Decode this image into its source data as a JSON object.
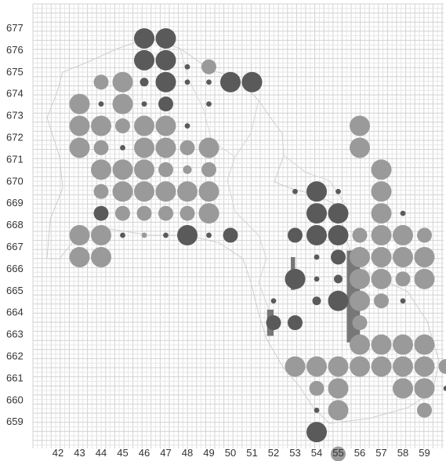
{
  "map": {
    "x_labels": [
      "42",
      "43",
      "44",
      "45",
      "46",
      "47",
      "48",
      "49",
      "50",
      "51",
      "52",
      "53",
      "54",
      "55",
      "56",
      "57",
      "58",
      "59"
    ],
    "y_labels": [
      "677",
      "676",
      "675",
      "674",
      "673",
      "672",
      "671",
      "670",
      "669",
      "668",
      "667",
      "666",
      "665",
      "664",
      "663",
      "662",
      "661",
      "660",
      "659"
    ],
    "colors": {
      "grid_minor": "#e6e6e6",
      "grid_major": "#d2d2d2",
      "outline": "#c8c8c8",
      "light_dot": "#9a9a9a",
      "dark_dot": "#5a5a5a",
      "sparkle": "#ffffff",
      "rect": "#777777"
    },
    "dots": [
      {
        "x": 46,
        "y": 676.5,
        "size": "large",
        "tone": "dark"
      },
      {
        "x": 47,
        "y": 676.5,
        "size": "large",
        "tone": "dark"
      },
      {
        "x": 46,
        "y": 675.5,
        "size": "large",
        "tone": "dark"
      },
      {
        "x": 47,
        "y": 675.5,
        "size": "large",
        "tone": "dark"
      },
      {
        "x": 46.5,
        "y": 676,
        "size": "tiny",
        "tone": "sparkle"
      },
      {
        "x": 48,
        "y": 675.2,
        "size": "tiny",
        "tone": "dark"
      },
      {
        "x": 49,
        "y": 675.2,
        "size": "medium",
        "tone": "light"
      },
      {
        "x": 44,
        "y": 674.5,
        "size": "medium",
        "tone": "light"
      },
      {
        "x": 45,
        "y": 674.5,
        "size": "large",
        "tone": "light"
      },
      {
        "x": 46,
        "y": 674.5,
        "size": "small",
        "tone": "dark"
      },
      {
        "x": 47,
        "y": 674.5,
        "size": "large",
        "tone": "dark"
      },
      {
        "x": 48,
        "y": 674.5,
        "size": "tiny",
        "tone": "dark"
      },
      {
        "x": 49,
        "y": 674.5,
        "size": "tiny",
        "tone": "dark"
      },
      {
        "x": 50,
        "y": 674.5,
        "size": "large",
        "tone": "dark"
      },
      {
        "x": 51,
        "y": 674.5,
        "size": "large",
        "tone": "dark"
      },
      {
        "x": 43,
        "y": 673.5,
        "size": "large",
        "tone": "light"
      },
      {
        "x": 44,
        "y": 673.5,
        "size": "tiny",
        "tone": "dark"
      },
      {
        "x": 45,
        "y": 673.5,
        "size": "large",
        "tone": "light"
      },
      {
        "x": 46,
        "y": 673.5,
        "size": "tiny",
        "tone": "dark"
      },
      {
        "x": 47,
        "y": 673.5,
        "size": "medium",
        "tone": "dark"
      },
      {
        "x": 49,
        "y": 673.5,
        "size": "tiny",
        "tone": "dark"
      },
      {
        "x": 43,
        "y": 672.5,
        "size": "large",
        "tone": "light"
      },
      {
        "x": 44,
        "y": 672.5,
        "size": "large",
        "tone": "light"
      },
      {
        "x": 45,
        "y": 672.5,
        "size": "medium",
        "tone": "light"
      },
      {
        "x": 46,
        "y": 672.5,
        "size": "large",
        "tone": "light"
      },
      {
        "x": 47,
        "y": 672.5,
        "size": "large",
        "tone": "light"
      },
      {
        "x": 48,
        "y": 672.5,
        "size": "tiny",
        "tone": "dark"
      },
      {
        "x": 43,
        "y": 671.5,
        "size": "large",
        "tone": "light"
      },
      {
        "x": 44,
        "y": 671.5,
        "size": "medium",
        "tone": "light"
      },
      {
        "x": 45,
        "y": 671.5,
        "size": "tiny",
        "tone": "dark"
      },
      {
        "x": 46,
        "y": 671.5,
        "size": "large",
        "tone": "light"
      },
      {
        "x": 47,
        "y": 671.5,
        "size": "large",
        "tone": "light"
      },
      {
        "x": 48,
        "y": 671.5,
        "size": "medium",
        "tone": "light"
      },
      {
        "x": 49,
        "y": 671.5,
        "size": "large",
        "tone": "light"
      },
      {
        "x": 46.5,
        "y": 672,
        "size": "tiny",
        "tone": "sparkle"
      },
      {
        "x": 44,
        "y": 670.5,
        "size": "large",
        "tone": "light"
      },
      {
        "x": 45,
        "y": 670.5,
        "size": "large",
        "tone": "light"
      },
      {
        "x": 46,
        "y": 670.5,
        "size": "large",
        "tone": "light"
      },
      {
        "x": 47,
        "y": 670.5,
        "size": "medium",
        "tone": "light"
      },
      {
        "x": 48,
        "y": 670.5,
        "size": "small",
        "tone": "light"
      },
      {
        "x": 49,
        "y": 670.5,
        "size": "medium",
        "tone": "light"
      },
      {
        "x": 44,
        "y": 669.5,
        "size": "medium",
        "tone": "light"
      },
      {
        "x": 45,
        "y": 669.5,
        "size": "large",
        "tone": "light"
      },
      {
        "x": 46,
        "y": 669.5,
        "size": "large",
        "tone": "light"
      },
      {
        "x": 47,
        "y": 669.5,
        "size": "large",
        "tone": "light"
      },
      {
        "x": 48,
        "y": 669.5,
        "size": "large",
        "tone": "light"
      },
      {
        "x": 49,
        "y": 669.5,
        "size": "large",
        "tone": "light"
      },
      {
        "x": 44,
        "y": 668.5,
        "size": "medium",
        "tone": "dark"
      },
      {
        "x": 45,
        "y": 668.5,
        "size": "medium",
        "tone": "light"
      },
      {
        "x": 46,
        "y": 668.5,
        "size": "medium",
        "tone": "light"
      },
      {
        "x": 47,
        "y": 668.5,
        "size": "medium",
        "tone": "light"
      },
      {
        "x": 48,
        "y": 668.5,
        "size": "medium",
        "tone": "light"
      },
      {
        "x": 49,
        "y": 668.5,
        "size": "large",
        "tone": "light"
      },
      {
        "x": 43,
        "y": 667.5,
        "size": "large",
        "tone": "light"
      },
      {
        "x": 44,
        "y": 667.5,
        "size": "large",
        "tone": "light"
      },
      {
        "x": 45,
        "y": 667.5,
        "size": "tiny",
        "tone": "dark"
      },
      {
        "x": 46,
        "y": 667.5,
        "size": "tiny",
        "tone": "light"
      },
      {
        "x": 47,
        "y": 667.5,
        "size": "tiny",
        "tone": "dark"
      },
      {
        "x": 48,
        "y": 667.5,
        "size": "large",
        "tone": "dark"
      },
      {
        "x": 49,
        "y": 667.5,
        "size": "tiny",
        "tone": "dark"
      },
      {
        "x": 50,
        "y": 667.5,
        "size": "medium",
        "tone": "dark"
      },
      {
        "x": 43,
        "y": 666.5,
        "size": "large",
        "tone": "light"
      },
      {
        "x": 44,
        "y": 666.5,
        "size": "large",
        "tone": "light"
      },
      {
        "x": 43.5,
        "y": 667,
        "size": "tiny",
        "tone": "sparkle"
      },
      {
        "x": 54,
        "y": 669.5,
        "size": "large",
        "tone": "dark"
      },
      {
        "x": 53,
        "y": 669.5,
        "size": "tiny",
        "tone": "dark"
      },
      {
        "x": 55,
        "y": 669.5,
        "size": "tiny",
        "tone": "dark"
      },
      {
        "x": 54,
        "y": 668.5,
        "size": "large",
        "tone": "dark"
      },
      {
        "x": 55,
        "y": 668.5,
        "size": "large",
        "tone": "dark"
      },
      {
        "x": 53,
        "y": 667.5,
        "size": "medium",
        "tone": "dark"
      },
      {
        "x": 54,
        "y": 667.5,
        "size": "large",
        "tone": "dark"
      },
      {
        "x": 55,
        "y": 667.5,
        "size": "large",
        "tone": "dark"
      },
      {
        "x": 56,
        "y": 667.5,
        "size": "tiny",
        "tone": "dark"
      },
      {
        "x": 54.5,
        "y": 668,
        "size": "tiny",
        "tone": "sparkle"
      },
      {
        "x": 54,
        "y": 666.5,
        "size": "tiny",
        "tone": "dark"
      },
      {
        "x": 55,
        "y": 666.5,
        "size": "medium",
        "tone": "dark"
      },
      {
        "x": 53,
        "y": 665.5,
        "size": "large",
        "tone": "dark"
      },
      {
        "x": 54,
        "y": 665.5,
        "size": "tiny",
        "tone": "dark"
      },
      {
        "x": 55,
        "y": 665.5,
        "size": "small",
        "tone": "dark"
      },
      {
        "x": 55,
        "y": 664.5,
        "size": "large",
        "tone": "dark"
      },
      {
        "x": 54,
        "y": 664.5,
        "size": "small",
        "tone": "dark"
      },
      {
        "x": 52,
        "y": 664.5,
        "size": "tiny",
        "tone": "dark"
      },
      {
        "x": 52,
        "y": 663.5,
        "size": "medium",
        "tone": "dark"
      },
      {
        "x": 53,
        "y": 663.5,
        "size": "medium",
        "tone": "dark"
      },
      {
        "x": 56,
        "y": 672.5,
        "size": "large",
        "tone": "light"
      },
      {
        "x": 56,
        "y": 671.5,
        "size": "large",
        "tone": "light"
      },
      {
        "x": 57,
        "y": 670.5,
        "size": "large",
        "tone": "light"
      },
      {
        "x": 57,
        "y": 669.5,
        "size": "large",
        "tone": "light"
      },
      {
        "x": 57,
        "y": 668.5,
        "size": "large",
        "tone": "light"
      },
      {
        "x": 58,
        "y": 668.5,
        "size": "tiny",
        "tone": "dark"
      },
      {
        "x": 56,
        "y": 667.5,
        "size": "medium",
        "tone": "light"
      },
      {
        "x": 57,
        "y": 667.5,
        "size": "large",
        "tone": "light"
      },
      {
        "x": 58,
        "y": 667.5,
        "size": "large",
        "tone": "light"
      },
      {
        "x": 59,
        "y": 667.5,
        "size": "medium",
        "tone": "light"
      },
      {
        "x": 57.5,
        "y": 667,
        "size": "tiny",
        "tone": "sparkle"
      },
      {
        "x": 56,
        "y": 666.5,
        "size": "large",
        "tone": "light"
      },
      {
        "x": 57,
        "y": 666.5,
        "size": "large",
        "tone": "light"
      },
      {
        "x": 58,
        "y": 666.5,
        "size": "large",
        "tone": "light"
      },
      {
        "x": 59,
        "y": 666.5,
        "size": "large",
        "tone": "light"
      },
      {
        "x": 56,
        "y": 665.5,
        "size": "large",
        "tone": "light"
      },
      {
        "x": 57,
        "y": 665.5,
        "size": "large",
        "tone": "light"
      },
      {
        "x": 58,
        "y": 665.5,
        "size": "medium",
        "tone": "light"
      },
      {
        "x": 59,
        "y": 665.5,
        "size": "large",
        "tone": "light"
      },
      {
        "x": 56.5,
        "y": 666,
        "size": "tiny",
        "tone": "sparkle"
      },
      {
        "x": 56.5,
        "y": 665,
        "size": "tiny",
        "tone": "sparkle"
      },
      {
        "x": 56,
        "y": 664.5,
        "size": "large",
        "tone": "light"
      },
      {
        "x": 57,
        "y": 664.5,
        "size": "medium",
        "tone": "light"
      },
      {
        "x": 58,
        "y": 664.5,
        "size": "tiny",
        "tone": "dark"
      },
      {
        "x": 56,
        "y": 663.5,
        "size": "medium",
        "tone": "light"
      },
      {
        "x": 56,
        "y": 662.5,
        "size": "large",
        "tone": "light"
      },
      {
        "x": 57,
        "y": 662.5,
        "size": "large",
        "tone": "light"
      },
      {
        "x": 58,
        "y": 662.5,
        "size": "large",
        "tone": "light"
      },
      {
        "x": 59,
        "y": 662.5,
        "size": "large",
        "tone": "light"
      },
      {
        "x": 56,
        "y": 661.5,
        "size": "large",
        "tone": "light"
      },
      {
        "x": 57,
        "y": 661.5,
        "size": "large",
        "tone": "light"
      },
      {
        "x": 58,
        "y": 661.5,
        "size": "large",
        "tone": "light"
      },
      {
        "x": 59,
        "y": 661.5,
        "size": "large",
        "tone": "light"
      },
      {
        "x": 55.5,
        "y": 662,
        "size": "tiny",
        "tone": "sparkle"
      },
      {
        "x": 56.5,
        "y": 662,
        "size": "tiny",
        "tone": "sparkle"
      },
      {
        "x": 53,
        "y": 661.5,
        "size": "large",
        "tone": "light"
      },
      {
        "x": 54,
        "y": 661.5,
        "size": "large",
        "tone": "light"
      },
      {
        "x": 55,
        "y": 661.5,
        "size": "large",
        "tone": "light"
      },
      {
        "x": 60,
        "y": 661.5,
        "size": "medium",
        "tone": "light"
      },
      {
        "x": 54,
        "y": 660.5,
        "size": "medium",
        "tone": "light"
      },
      {
        "x": 55,
        "y": 660.5,
        "size": "large",
        "tone": "light"
      },
      {
        "x": 58,
        "y": 660.5,
        "size": "large",
        "tone": "light"
      },
      {
        "x": 59,
        "y": 660.5,
        "size": "large",
        "tone": "light"
      },
      {
        "x": 60,
        "y": 660.5,
        "size": "tiny",
        "tone": "dark"
      },
      {
        "x": 54,
        "y": 659.5,
        "size": "tiny",
        "tone": "dark"
      },
      {
        "x": 55,
        "y": 659.5,
        "size": "large",
        "tone": "light"
      },
      {
        "x": 59,
        "y": 659.5,
        "size": "medium",
        "tone": "light"
      },
      {
        "x": 54,
        "y": 658.5,
        "size": "large",
        "tone": "dark"
      },
      {
        "x": 55,
        "y": 657.5,
        "size": "medium",
        "tone": "light"
      }
    ],
    "gray_rects": [
      {
        "x1": 55.4,
        "y1": 666.8,
        "x2": 56.0,
        "y2": 662.6
      },
      {
        "x1": 51.7,
        "y1": 664.1,
        "x2": 52.0,
        "y2": 662.9
      },
      {
        "x1": 52.8,
        "y1": 666.5,
        "x2": 53.0,
        "y2": 665.0
      }
    ]
  }
}
